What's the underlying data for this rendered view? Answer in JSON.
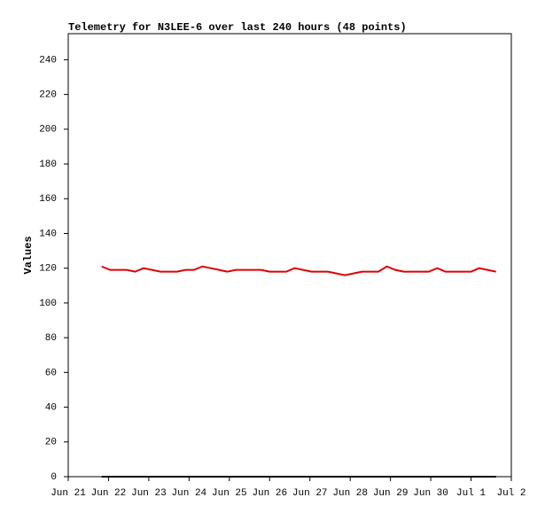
{
  "chart_data": {
    "type": "line",
    "title": "Telemetry for N3LEE-6 over last 240 hours (48 points)",
    "y_label": "Values",
    "x": [
      0.83,
      1.04,
      1.25,
      1.45,
      1.66,
      1.87,
      2.08,
      2.29,
      2.5,
      2.7,
      2.91,
      3.12,
      3.33,
      3.54,
      3.75,
      3.95,
      4.16,
      4.37,
      4.58,
      4.79,
      5.0,
      5.2,
      5.41,
      5.62,
      5.83,
      6.04,
      6.25,
      6.45,
      6.66,
      6.87,
      7.08,
      7.29,
      7.5,
      7.7,
      7.91,
      8.12,
      8.33,
      8.54,
      8.75,
      8.95,
      9.16,
      9.37,
      9.58,
      9.79,
      10.0,
      10.2,
      10.41,
      10.62
    ],
    "series": [
      {
        "color": "#e00000",
        "values": [
          121,
          119,
          119,
          119,
          118,
          120,
          119,
          118,
          118,
          118,
          119,
          119,
          121,
          120,
          119,
          118,
          119,
          119,
          119,
          119,
          118,
          118,
          118,
          120,
          119,
          118,
          118,
          118,
          117,
          116,
          117,
          118,
          118,
          118,
          121,
          119,
          118,
          118,
          118,
          118,
          120,
          118,
          118,
          118,
          118,
          120,
          119,
          118
        ]
      },
      {
        "color": "#000000",
        "values": [
          0,
          0,
          0,
          0,
          0,
          0,
          0,
          0,
          0,
          0,
          0,
          0,
          0,
          0,
          0,
          0,
          0,
          0,
          0,
          0,
          0,
          0,
          0,
          0,
          0,
          0,
          0,
          0,
          0,
          0,
          0,
          0,
          0,
          0,
          0,
          0,
          0,
          0,
          0,
          0,
          0,
          0,
          0,
          0,
          0,
          0,
          0,
          0
        ]
      }
    ],
    "xlim": [
      0,
      11
    ],
    "xticks": [
      {
        "value": 0,
        "label": "Jun 21"
      },
      {
        "value": 1,
        "label": "Jun 22"
      },
      {
        "value": 2,
        "label": "Jun 23"
      },
      {
        "value": 3,
        "label": "Jun 24"
      },
      {
        "value": 4,
        "label": "Jun 25"
      },
      {
        "value": 5,
        "label": "Jun 26"
      },
      {
        "value": 6,
        "label": "Jun 27"
      },
      {
        "value": 7,
        "label": "Jun 28"
      },
      {
        "value": 8,
        "label": "Jun 29"
      },
      {
        "value": 9,
        "label": "Jun 30"
      },
      {
        "value": 10,
        "label": "Jul 1"
      },
      {
        "value": 11,
        "label": "Jul 2"
      }
    ],
    "ylim": [
      0,
      255
    ],
    "yticks": [
      0,
      20,
      40,
      60,
      80,
      100,
      120,
      140,
      160,
      180,
      200,
      220,
      240
    ],
    "grid": false
  }
}
